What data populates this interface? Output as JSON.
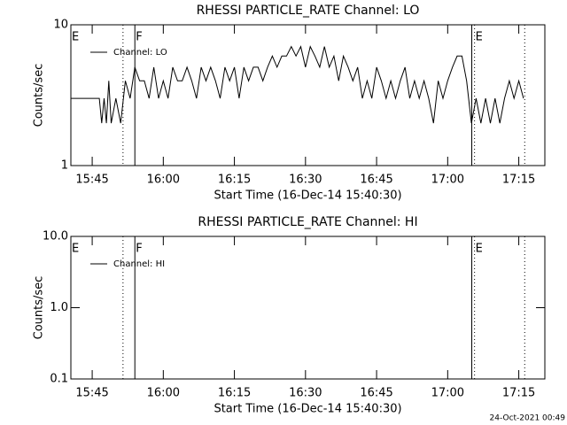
{
  "chart_data": [
    {
      "type": "line",
      "title": "RHESSI PARTICLE_RATE Channel: LO",
      "xlabel": "Start Time (16-Dec-14 15:40:30)",
      "ylabel": "Counts/sec",
      "log_y": true,
      "ylim": [
        1,
        10
      ],
      "yticks": [
        1,
        10
      ],
      "xlim": [
        "15:40:30",
        "17:20:30"
      ],
      "xticks": [
        "15:45",
        "16:00",
        "16:15",
        "16:30",
        "16:45",
        "17:00",
        "17:15"
      ],
      "legend": "top-left",
      "vlines": [
        {
          "x": "15:51:30",
          "style": "dotted"
        },
        {
          "x": "15:54:00",
          "style": "solid"
        },
        {
          "x": "17:05:05",
          "style": "solid"
        },
        {
          "x": "17:05:40",
          "style": "dotted"
        },
        {
          "x": "17:16:15",
          "style": "dotted"
        }
      ],
      "annotations": [
        {
          "label": "E",
          "x": "15:40:30"
        },
        {
          "label": "F",
          "x": "15:54:00"
        },
        {
          "label": "E",
          "x": "17:05:40"
        }
      ],
      "series": [
        {
          "name": "Channel: LO",
          "color": "#000000",
          "x": [
            "15:40:30",
            "15:46:30",
            "15:47:00",
            "15:47:30",
            "15:48:00",
            "15:48:30",
            "15:49:00",
            "15:50:00",
            "15:51:00",
            "15:52:00",
            "15:53:00",
            "15:54:00",
            "15:55:00",
            "15:56:00",
            "15:57:00",
            "15:58:00",
            "15:59:00",
            "16:00:00",
            "16:01:00",
            "16:02:00",
            "16:03:00",
            "16:04:00",
            "16:05:00",
            "16:06:00",
            "16:07:00",
            "16:08:00",
            "16:09:00",
            "16:10:00",
            "16:11:00",
            "16:12:00",
            "16:13:00",
            "16:14:00",
            "16:15:00",
            "16:16:00",
            "16:17:00",
            "16:18:00",
            "16:19:00",
            "16:20:00",
            "16:21:00",
            "16:22:00",
            "16:23:00",
            "16:24:00",
            "16:25:00",
            "16:26:00",
            "16:27:00",
            "16:28:00",
            "16:29:00",
            "16:30:00",
            "16:31:00",
            "16:32:00",
            "16:33:00",
            "16:34:00",
            "16:35:00",
            "16:36:00",
            "16:37:00",
            "16:38:00",
            "16:39:00",
            "16:40:00",
            "16:41:00",
            "16:42:00",
            "16:43:00",
            "16:44:00",
            "16:45:00",
            "16:46:00",
            "16:47:00",
            "16:48:00",
            "16:49:00",
            "16:50:00",
            "16:51:00",
            "16:52:00",
            "16:53:00",
            "16:54:00",
            "16:55:00",
            "16:56:00",
            "16:57:00",
            "16:58:00",
            "16:59:00",
            "17:00:00",
            "17:01:00",
            "17:02:00",
            "17:03:00",
            "17:04:00",
            "17:05:00",
            "17:06:00",
            "17:07:00",
            "17:08:00",
            "17:09:00",
            "17:10:00",
            "17:11:00",
            "17:12:00",
            "17:13:00",
            "17:14:00",
            "17:15:00",
            "17:16:00"
          ],
          "values": [
            3,
            3,
            2,
            3,
            2,
            4,
            2,
            3,
            2,
            4,
            3,
            5,
            4,
            4,
            3,
            5,
            3,
            4,
            3,
            5,
            4,
            4,
            5,
            4,
            3,
            5,
            4,
            5,
            4,
            3,
            5,
            4,
            5,
            3,
            5,
            4,
            5,
            5,
            4,
            5,
            6,
            5,
            6,
            6,
            7,
            6,
            7,
            5,
            7,
            6,
            5,
            7,
            5,
            6,
            4,
            6,
            5,
            4,
            5,
            3,
            4,
            3,
            5,
            4,
            3,
            4,
            3,
            4,
            5,
            3,
            4,
            3,
            4,
            3,
            2,
            4,
            3,
            4,
            5,
            6,
            6,
            4,
            2,
            3,
            2,
            3,
            2,
            3,
            2,
            3,
            4,
            3,
            4,
            3
          ]
        }
      ]
    },
    {
      "type": "line",
      "title": "RHESSI PARTICLE_RATE Channel: HI",
      "xlabel": "Start Time (16-Dec-14 15:40:30)",
      "ylabel": "Counts/sec",
      "log_y": true,
      "ylim": [
        0.1,
        10
      ],
      "yticks": [
        {
          "value": 0.1,
          "label": "0.1"
        },
        {
          "value": 1,
          "label": "1.0"
        },
        {
          "value": 10,
          "label": "10.0"
        }
      ],
      "xlim": [
        "15:40:30",
        "17:20:30"
      ],
      "xticks": [
        "15:45",
        "16:00",
        "16:15",
        "16:30",
        "16:45",
        "17:00",
        "17:15"
      ],
      "legend": "top-left",
      "vlines": [
        {
          "x": "15:51:30",
          "style": "dotted"
        },
        {
          "x": "15:54:00",
          "style": "solid"
        },
        {
          "x": "17:05:05",
          "style": "solid"
        },
        {
          "x": "17:05:40",
          "style": "dotted"
        },
        {
          "x": "17:16:15",
          "style": "dotted"
        }
      ],
      "annotations": [
        {
          "label": "E",
          "x": "15:40:30"
        },
        {
          "label": "F",
          "x": "15:54:00"
        },
        {
          "label": "E",
          "x": "17:05:40"
        }
      ],
      "series": [
        {
          "name": "Channel: HI",
          "color": "#000000",
          "x": [],
          "values": []
        }
      ]
    }
  ],
  "footer": "24-Oct-2021 00:49"
}
